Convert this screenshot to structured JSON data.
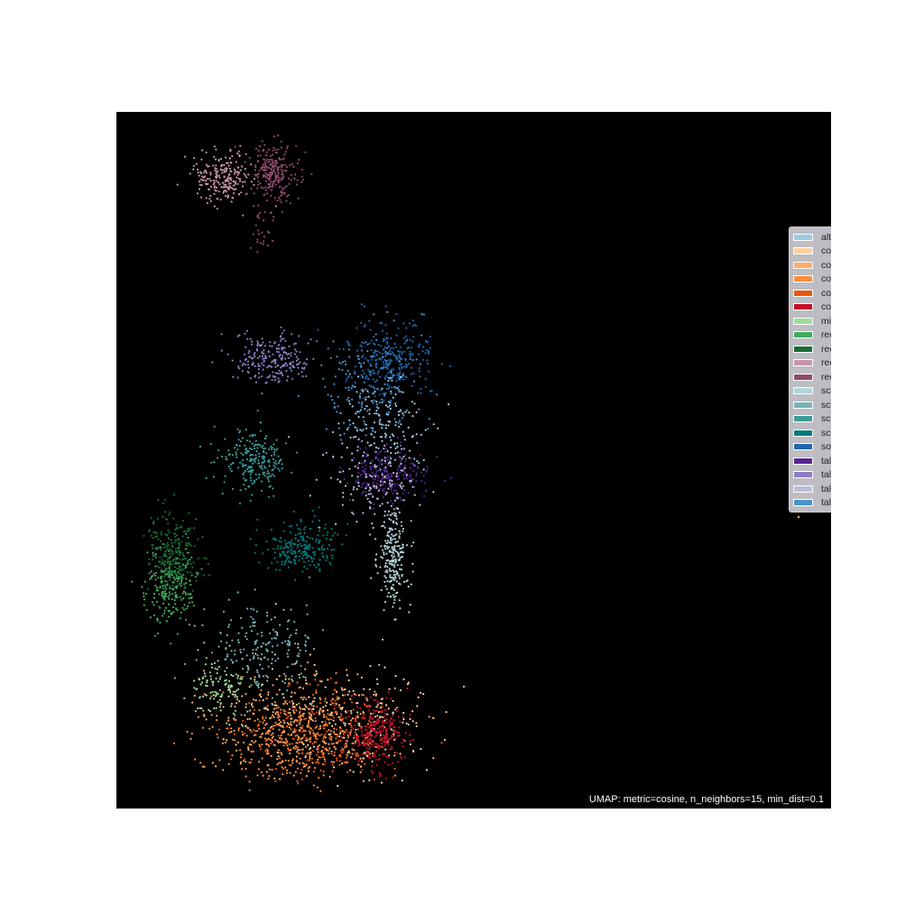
{
  "chart_data": {
    "type": "scatter",
    "title": "",
    "xlabel": "",
    "ylabel": "",
    "grid": false,
    "axes_visible": false,
    "background": "#000000",
    "legend_position": "top-right",
    "annotation": "UMAP: metric=cosine, n_neighbors=15, min_dist=0.1",
    "series": [
      {
        "name": "alt.atheism",
        "color": "#9ecae1",
        "clusters": [
          {
            "cx": 425,
            "cy": 470,
            "sx": 26,
            "sy": 30,
            "n": 150
          }
        ]
      },
      {
        "name": "comp.graphics",
        "color": "#fdd0a2",
        "clusters": [
          {
            "cx": 380,
            "cy": 795,
            "sx": 48,
            "sy": 30,
            "n": 260
          }
        ]
      },
      {
        "name": "comp.os.ms-windows.misc",
        "color": "#fdae6b",
        "clusters": [
          {
            "cx": 330,
            "cy": 800,
            "sx": 50,
            "sy": 30,
            "n": 260
          }
        ]
      },
      {
        "name": "comp.sys.ibm.pc.hardware",
        "color": "#fd8d3c",
        "clusters": [
          {
            "cx": 318,
            "cy": 818,
            "sx": 40,
            "sy": 24,
            "n": 320
          }
        ]
      },
      {
        "name": "comp.sys.mac.hardware",
        "color": "#e6550d",
        "clusters": [
          {
            "cx": 355,
            "cy": 812,
            "sx": 42,
            "sy": 26,
            "n": 260
          }
        ]
      },
      {
        "name": "comp.windows.x",
        "color": "#c0102a",
        "clusters": [
          {
            "cx": 418,
            "cy": 815,
            "sx": 16,
            "sy": 18,
            "n": 280
          }
        ]
      },
      {
        "name": "misc.forsale",
        "color": "#a1d99b",
        "clusters": [
          {
            "cx": 245,
            "cy": 760,
            "sx": 16,
            "sy": 18,
            "n": 120
          }
        ]
      },
      {
        "name": "rec.autos",
        "color": "#41ab5d",
        "clusters": [
          {
            "cx": 188,
            "cy": 650,
            "sx": 14,
            "sy": 22,
            "n": 230
          }
        ]
      },
      {
        "name": "rec.motorcycles",
        "color": "#1a6b35",
        "clusters": [
          {
            "cx": 192,
            "cy": 612,
            "sx": 14,
            "sy": 22,
            "n": 230
          }
        ]
      },
      {
        "name": "rec.sport.baseball",
        "color": "#c994a7",
        "clusters": [
          {
            "cx": 248,
            "cy": 198,
            "sx": 16,
            "sy": 14,
            "n": 220
          }
        ]
      },
      {
        "name": "rec.sport.hockey",
        "color": "#8e4a6c",
        "clusters": [
          {
            "cx": 303,
            "cy": 190,
            "sx": 14,
            "sy": 16,
            "n": 240
          },
          {
            "cx": 290,
            "cy": 250,
            "sx": 6,
            "sy": 14,
            "n": 30
          }
        ]
      },
      {
        "name": "sci.crypt",
        "color": "#b3d5d8",
        "clusters": [
          {
            "cx": 436,
            "cy": 620,
            "sx": 9,
            "sy": 26,
            "n": 220
          }
        ]
      },
      {
        "name": "sci.electronics",
        "color": "#74b4b6",
        "clusters": [
          {
            "cx": 290,
            "cy": 715,
            "sx": 32,
            "sy": 22,
            "n": 200
          }
        ]
      },
      {
        "name": "sci.med",
        "color": "#3a9a97",
        "clusters": [
          {
            "cx": 282,
            "cy": 510,
            "sx": 18,
            "sy": 16,
            "n": 230
          }
        ]
      },
      {
        "name": "sci.space",
        "color": "#047a78",
        "clusters": [
          {
            "cx": 333,
            "cy": 608,
            "sx": 20,
            "sy": 13,
            "n": 230
          }
        ]
      },
      {
        "name": "soc.religion.christian",
        "color": "#2166ac",
        "clusters": [
          {
            "cx": 432,
            "cy": 398,
            "sx": 22,
            "sy": 22,
            "n": 300
          }
        ]
      },
      {
        "name": "talk.politics.guns",
        "color": "#54278f",
        "clusters": [
          {
            "cx": 428,
            "cy": 525,
            "sx": 22,
            "sy": 14,
            "n": 220
          }
        ]
      },
      {
        "name": "talk.politics.mideast",
        "color": "#8e7cc3",
        "clusters": [
          {
            "cx": 303,
            "cy": 398,
            "sx": 22,
            "sy": 14,
            "n": 220
          }
        ]
      },
      {
        "name": "talk.politics.misc",
        "color": "#bcbddc",
        "clusters": [
          {
            "cx": 420,
            "cy": 540,
            "sx": 26,
            "sy": 28,
            "n": 160
          }
        ]
      },
      {
        "name": "talk.religion.misc",
        "color": "#4a91c6",
        "clusters": [
          {
            "cx": 410,
            "cy": 430,
            "sx": 30,
            "sy": 30,
            "n": 150
          }
        ]
      }
    ]
  }
}
